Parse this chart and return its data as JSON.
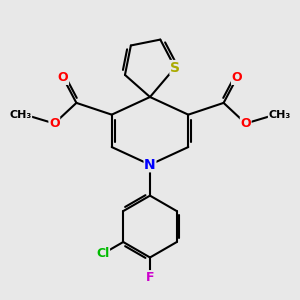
{
  "bg_color": "#e8e8e8",
  "bond_color": "#000000",
  "bond_width": 1.5,
  "atom_colors": {
    "S": "#aaaa00",
    "O": "#ff0000",
    "N": "#0000ff",
    "Cl": "#00bb00",
    "F": "#cc00cc",
    "C": "#000000"
  },
  "font_size": 9
}
